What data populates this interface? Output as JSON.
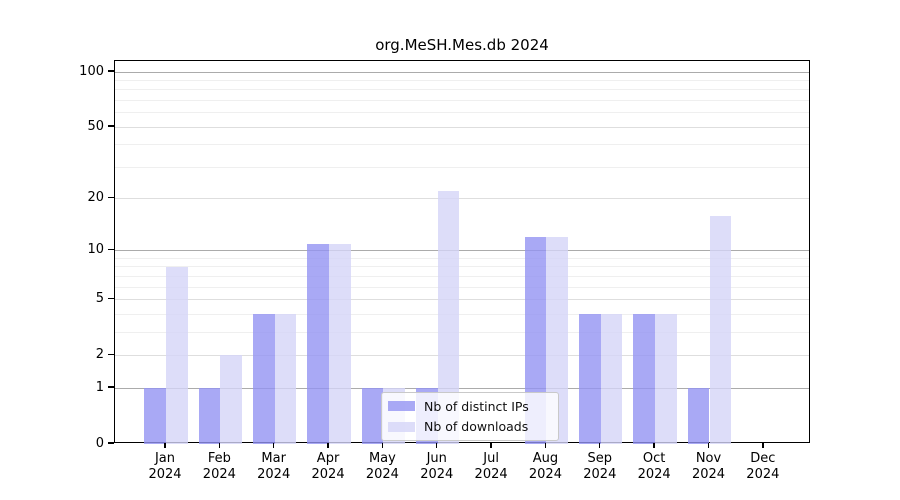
{
  "chart_data": {
    "type": "bar",
    "title": "org.MeSH.Mes.db 2024",
    "year": "2024",
    "months": [
      "Jan",
      "Feb",
      "Mar",
      "Apr",
      "May",
      "Jun",
      "Jul",
      "Aug",
      "Sep",
      "Oct",
      "Nov",
      "Dec"
    ],
    "series": [
      {
        "name": "Nb of distinct IPs",
        "color": "#9494f2",
        "values": [
          1,
          1,
          4,
          11,
          1,
          1,
          0,
          12,
          4,
          4,
          1,
          0
        ]
      },
      {
        "name": "Nb of downloads",
        "color": "#d5d5f8",
        "values": [
          8,
          2,
          4,
          11,
          1,
          22,
          0,
          12,
          4,
          4,
          16,
          0
        ]
      }
    ],
    "y_axis": {
      "ticks": [
        0,
        1,
        2,
        5,
        10,
        20,
        50,
        100
      ],
      "scale": "log(value+1)",
      "range": [
        0,
        115
      ]
    },
    "grid": "on",
    "legend_position": "lower center",
    "colors": {
      "major_gridline": "#ababab",
      "labeled_gridline": "#dedede",
      "minor_gridline": "#efefef"
    }
  }
}
